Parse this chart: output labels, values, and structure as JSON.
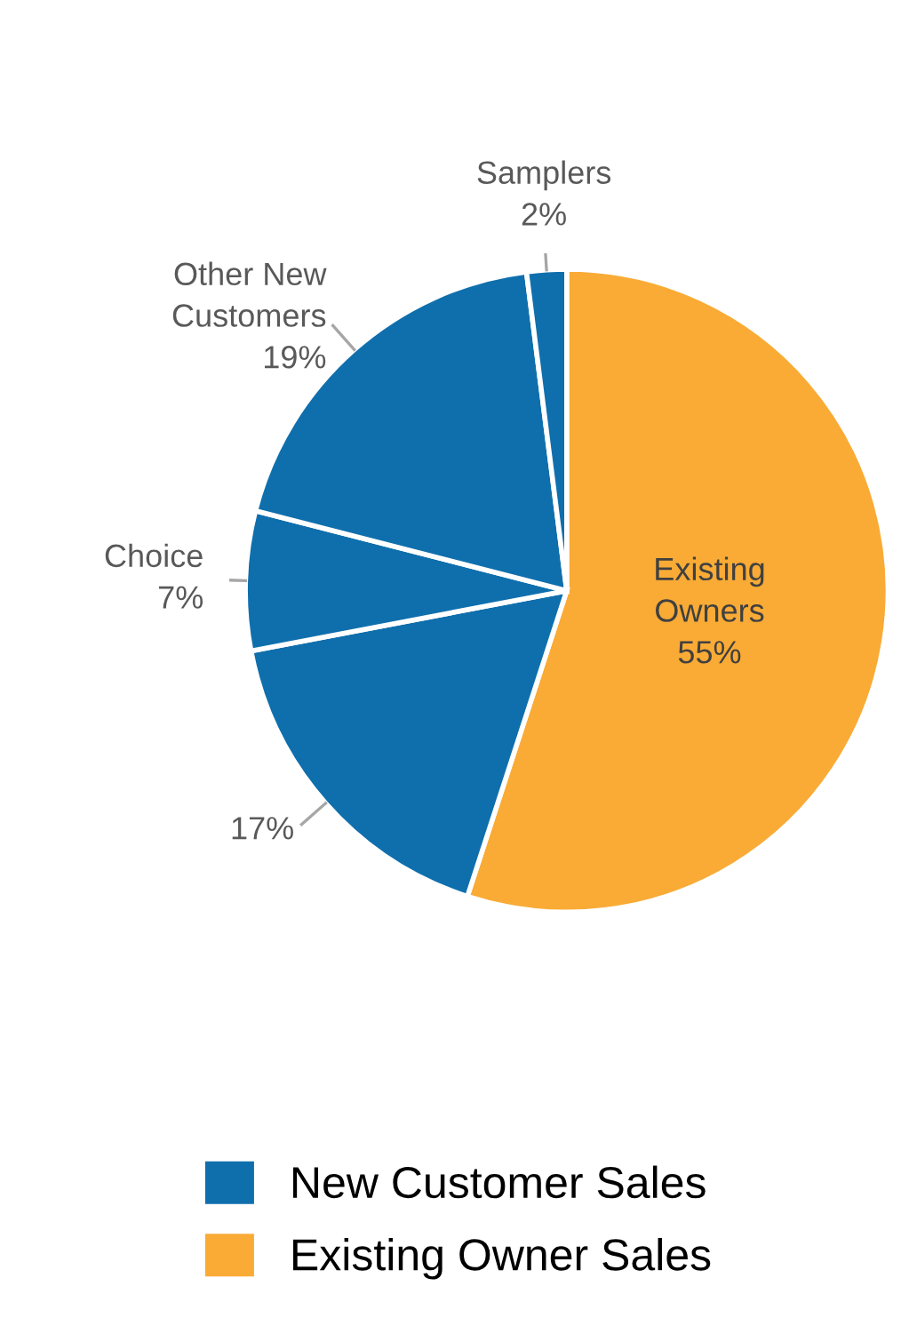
{
  "chart_data": {
    "type": "pie",
    "categories": [
      "Existing\nOwners",
      null,
      "Choice",
      "Other New\nCustomers",
      "Samplers"
    ],
    "values": [
      55,
      17,
      7,
      19,
      2
    ],
    "colors": [
      "#f9ab35",
      "#0f6fad",
      "#0f6fad",
      "#0f6fad",
      "#0f6fad"
    ],
    "value_labels": [
      "55%",
      "17%",
      "7%",
      "19%",
      "2%"
    ],
    "annotations": [
      "New Customer Sales",
      "Existing Owner Sales"
    ]
  }
}
